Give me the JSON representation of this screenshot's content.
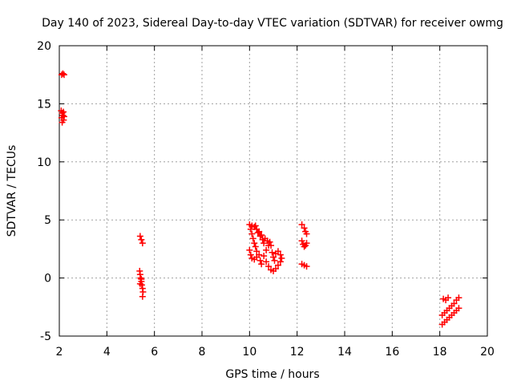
{
  "chart_data": {
    "type": "scatter",
    "title": "Day 140 of 2023, Sidereal Day-to-day VTEC variation (SDTVAR) for receiver owmg",
    "xlabel": "GPS time / hours",
    "ylabel": "SDTVAR / TECUs",
    "xlim": [
      2,
      20
    ],
    "ylim": [
      -5,
      20
    ],
    "xticks": [
      2,
      4,
      6,
      8,
      10,
      12,
      14,
      16,
      18,
      20
    ],
    "yticks": [
      -5,
      0,
      5,
      10,
      15,
      20
    ],
    "grid": true,
    "marker": "+",
    "color": "#ff0000",
    "series": [
      {
        "name": "SDTVAR",
        "points": [
          [
            2.1,
            17.5
          ],
          [
            2.15,
            17.6
          ],
          [
            2.2,
            17.5
          ],
          [
            2.08,
            14.4
          ],
          [
            2.12,
            14.2
          ],
          [
            2.15,
            14.0
          ],
          [
            2.1,
            13.8
          ],
          [
            2.18,
            13.6
          ],
          [
            2.12,
            13.4
          ],
          [
            2.2,
            13.9
          ],
          [
            2.17,
            14.3
          ],
          [
            5.4,
            3.6
          ],
          [
            5.45,
            3.3
          ],
          [
            5.5,
            3.0
          ],
          [
            5.38,
            0.6
          ],
          [
            5.4,
            0.3
          ],
          [
            5.42,
            0.0
          ],
          [
            5.45,
            -0.3
          ],
          [
            5.47,
            -0.6
          ],
          [
            5.5,
            -0.9
          ],
          [
            5.52,
            -1.2
          ],
          [
            5.5,
            -1.6
          ],
          [
            5.45,
            -0.1
          ],
          [
            5.4,
            -0.5
          ],
          [
            10.0,
            4.6
          ],
          [
            10.1,
            4.5
          ],
          [
            10.2,
            4.4
          ],
          [
            10.3,
            4.2
          ],
          [
            10.35,
            3.9
          ],
          [
            10.45,
            3.6
          ],
          [
            10.55,
            3.3
          ],
          [
            10.6,
            3.0
          ],
          [
            10.05,
            4.2
          ],
          [
            10.1,
            3.8
          ],
          [
            10.15,
            3.4
          ],
          [
            10.2,
            3.0
          ],
          [
            10.25,
            2.7
          ],
          [
            10.3,
            2.3
          ],
          [
            10.0,
            2.4
          ],
          [
            10.05,
            2.0
          ],
          [
            10.1,
            1.7
          ],
          [
            10.2,
            1.6
          ],
          [
            10.3,
            1.8
          ],
          [
            10.4,
            2.0
          ],
          [
            10.45,
            1.5
          ],
          [
            10.5,
            1.2
          ],
          [
            10.6,
            1.9
          ],
          [
            10.7,
            2.4
          ],
          [
            10.8,
            2.8
          ],
          [
            10.85,
            3.1
          ],
          [
            10.9,
            2.8
          ],
          [
            10.95,
            2.2
          ],
          [
            11.0,
            1.8
          ],
          [
            10.7,
            1.4
          ],
          [
            10.8,
            1.0
          ],
          [
            10.9,
            0.7
          ],
          [
            11.0,
            0.6
          ],
          [
            11.1,
            0.8
          ],
          [
            11.2,
            1.1
          ],
          [
            11.3,
            1.4
          ],
          [
            11.35,
            1.7
          ],
          [
            11.3,
            2.0
          ],
          [
            11.2,
            2.3
          ],
          [
            11.1,
            2.1
          ],
          [
            11.05,
            1.5
          ],
          [
            10.25,
            4.5
          ],
          [
            10.4,
            4.0
          ],
          [
            10.5,
            3.7
          ],
          [
            10.65,
            3.4
          ],
          [
            10.75,
            3.2
          ],
          [
            12.2,
            4.6
          ],
          [
            12.3,
            4.3
          ],
          [
            12.35,
            4.0
          ],
          [
            12.4,
            3.8
          ],
          [
            12.2,
            3.2
          ],
          [
            12.25,
            2.9
          ],
          [
            12.3,
            2.7
          ],
          [
            12.35,
            2.8
          ],
          [
            12.4,
            3.0
          ],
          [
            12.2,
            1.2
          ],
          [
            12.3,
            1.1
          ],
          [
            12.4,
            1.0
          ],
          [
            18.15,
            -1.8
          ],
          [
            18.25,
            -1.9
          ],
          [
            18.35,
            -1.7
          ],
          [
            18.1,
            -3.2
          ],
          [
            18.2,
            -3.0
          ],
          [
            18.3,
            -2.8
          ],
          [
            18.4,
            -2.6
          ],
          [
            18.5,
            -2.4
          ],
          [
            18.6,
            -2.2
          ],
          [
            18.7,
            -1.9
          ],
          [
            18.8,
            -1.7
          ],
          [
            18.1,
            -4.0
          ],
          [
            18.2,
            -3.8
          ],
          [
            18.3,
            -3.6
          ],
          [
            18.4,
            -3.4
          ],
          [
            18.5,
            -3.2
          ],
          [
            18.6,
            -3.0
          ],
          [
            18.7,
            -2.8
          ],
          [
            18.8,
            -2.6
          ]
        ]
      }
    ]
  }
}
